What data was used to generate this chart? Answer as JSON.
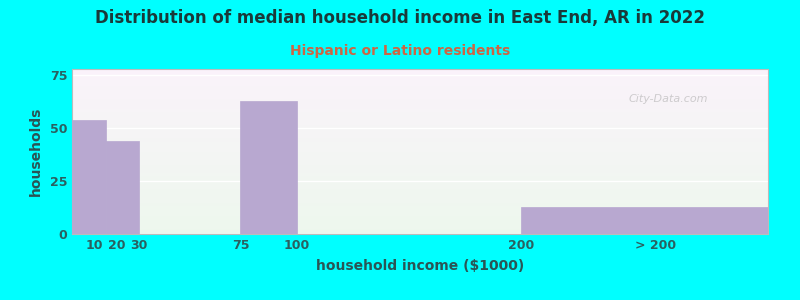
{
  "title": "Distribution of median household income in East End, AR in 2022",
  "subtitle": "Hispanic or Latino residents",
  "xlabel": "household income ($1000)",
  "ylabel": "households",
  "background_color": "#00FFFF",
  "bar_color": "#b8a8d0",
  "title_color": "#1a3a3a",
  "subtitle_color": "#cc6644",
  "tick_color": "#2a6060",
  "axis_label_color": "#2a5555",
  "watermark": "City-Data.com",
  "yticks": [
    0,
    25,
    50,
    75
  ],
  "ylim": [
    0,
    78
  ],
  "xlim": [
    0,
    310
  ],
  "bars": [
    {
      "x_left": 0,
      "x_right": 15,
      "height": 54
    },
    {
      "x_left": 15,
      "x_right": 30,
      "height": 44
    },
    {
      "x_left": 30,
      "x_right": 75,
      "height": 0
    },
    {
      "x_left": 75,
      "x_right": 100,
      "height": 63
    },
    {
      "x_left": 100,
      "x_right": 200,
      "height": 0
    },
    {
      "x_left": 200,
      "x_right": 310,
      "height": 13
    }
  ],
  "xtick_positions": [
    10,
    20,
    30,
    75,
    100,
    200,
    260
  ],
  "xtick_labels": [
    "10",
    "20",
    "30",
    "75",
    "100",
    "200",
    "> 200"
  ],
  "title_fontsize": 12,
  "subtitle_fontsize": 10,
  "axis_label_fontsize": 10,
  "tick_fontsize": 9
}
